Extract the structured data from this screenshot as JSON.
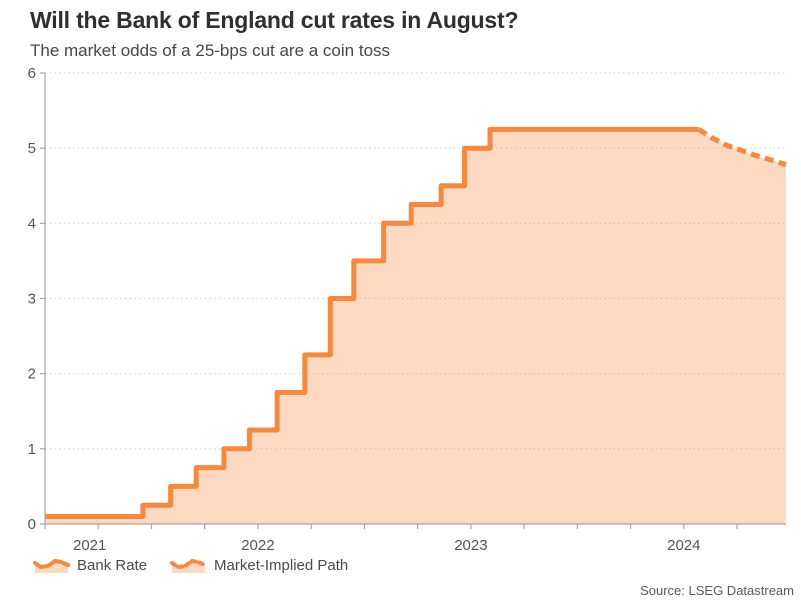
{
  "header": {
    "title": "Will the Bank of England cut rates in August?",
    "subtitle": "The market odds of a 25-bps cut are a coin toss"
  },
  "legend": {
    "bank_rate": "Bank Rate",
    "market_implied": "Market-Implied Path"
  },
  "source": "Source: LSEG Datastream",
  "chart_data": {
    "type": "area",
    "title": "Will the Bank of England cut rates in August?",
    "subtitle": "The market odds of a 25-bps cut are a coin toss",
    "xlabel": "",
    "ylabel": "",
    "grid": "dotted-horizontal",
    "legend_position": "bottom-left",
    "x_axis": {
      "unit": "decimal-year",
      "min": 2021.5,
      "max": 2024.98,
      "tick_start": 2021.5,
      "tick_end": 2024.75,
      "tick_step": 0.25,
      "year_labels": [
        {
          "text": "2021",
          "x": 2021.71
        },
        {
          "text": "2022",
          "x": 2022.5
        },
        {
          "text": "2023",
          "x": 2023.5
        },
        {
          "text": "2024",
          "x": 2024.5
        }
      ]
    },
    "y_axis": {
      "min": 0,
      "max": 6,
      "ticks": [
        0,
        1,
        2,
        3,
        4,
        5,
        6
      ]
    },
    "series": [
      {
        "name": "Bank Rate",
        "style": "solid-step",
        "points": [
          [
            2021.5,
            0.1
          ],
          [
            2021.96,
            0.25
          ],
          [
            2022.09,
            0.5
          ],
          [
            2022.21,
            0.75
          ],
          [
            2022.34,
            1.0
          ],
          [
            2022.46,
            1.25
          ],
          [
            2022.59,
            1.75
          ],
          [
            2022.72,
            2.25
          ],
          [
            2022.84,
            3.0
          ],
          [
            2022.95,
            3.5
          ],
          [
            2023.09,
            4.0
          ],
          [
            2023.22,
            4.25
          ],
          [
            2023.36,
            4.5
          ],
          [
            2023.47,
            5.0
          ],
          [
            2023.59,
            5.25
          ],
          [
            2024.57,
            5.25
          ]
        ]
      },
      {
        "name": "Market-Implied Path",
        "style": "dashed",
        "points": [
          [
            2024.57,
            5.25
          ],
          [
            2024.63,
            5.14
          ],
          [
            2024.7,
            5.04
          ],
          [
            2024.77,
            4.97
          ],
          [
            2024.84,
            4.9
          ],
          [
            2024.9,
            4.85
          ],
          [
            2024.98,
            4.78
          ]
        ]
      }
    ],
    "colors": {
      "line": "#F7883C",
      "fill_opacity": 0.32,
      "grid": "#DADADA",
      "axis": "#A6A6A6",
      "text": "#555555"
    }
  }
}
